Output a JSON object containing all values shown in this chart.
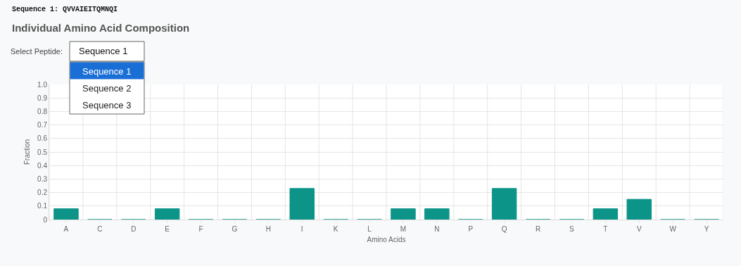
{
  "chart_data": {
    "type": "bar",
    "title": "Individual Amino Acid Composition",
    "subtitle": "Sequence 1: QVVAIEITQMNQI",
    "annotations": [
      "Select Peptide:",
      "Sequence 1",
      "Sequence 1",
      "Sequence 2",
      "Sequence 3"
    ],
    "xlabel": "Amino Acids",
    "ylabel": "Fraction",
    "categories": [
      "A",
      "C",
      "D",
      "E",
      "F",
      "G",
      "H",
      "I",
      "K",
      "L",
      "M",
      "N",
      "P",
      "Q",
      "R",
      "S",
      "T",
      "V",
      "W",
      "Y"
    ],
    "values": [
      0.08,
      0,
      0,
      0.08,
      0,
      0,
      0,
      0.23,
      0,
      0,
      0.08,
      0.08,
      0,
      0.23,
      0,
      0,
      0.08,
      0.15,
      0,
      0
    ],
    "color": "#0d9488",
    "ylim": [
      0,
      1
    ],
    "yticks": [
      0,
      0.1,
      0.2,
      0.3,
      0.4,
      0.5,
      0.6,
      0.7,
      0.8,
      0.9,
      {
        "value": 1,
        "label": "1.0"
      }
    ],
    "grid": true
  }
}
